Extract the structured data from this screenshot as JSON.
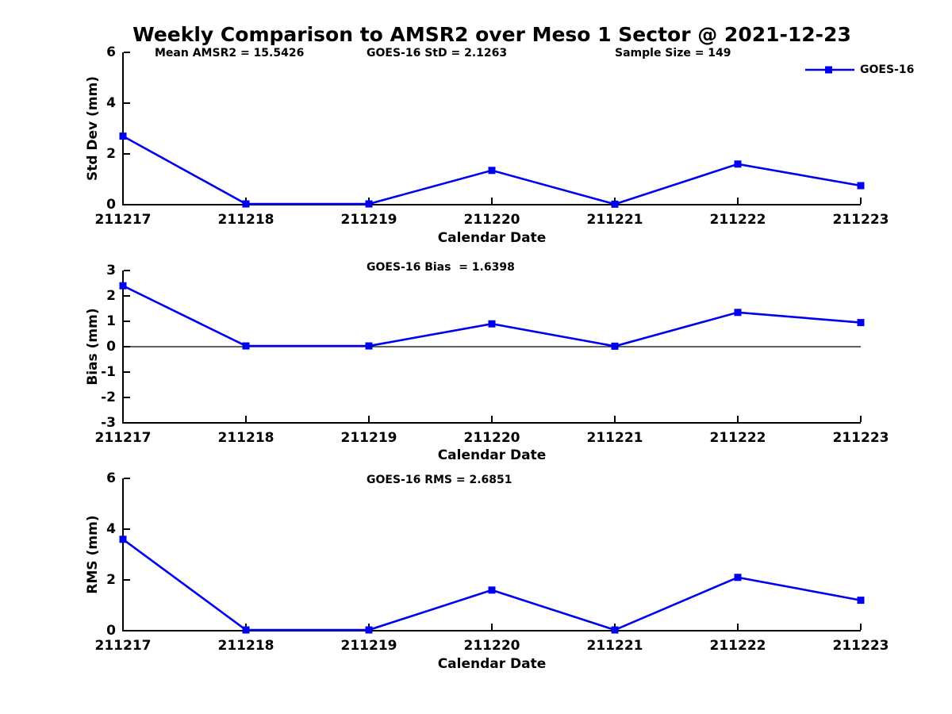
{
  "figure": {
    "title": "Weekly Comparison to AMSR2 over Meso 1 Sector @ 2021-12-23",
    "stats": [
      {
        "label": "Mean AMSR2 = 15.5426"
      },
      {
        "label": "GOES-16 StD = 2.1263"
      },
      {
        "label": "Sample Size = 149"
      }
    ],
    "legend": {
      "label": "GOES-16",
      "marker": "filled-square",
      "line_color": "#0000EE"
    }
  },
  "colors": {
    "series": "#0000EE",
    "axis": "#000000",
    "text": "#000000",
    "background": "#FFFFFF"
  },
  "chart_data": [
    {
      "type": "line",
      "id": "std-dev",
      "title": "",
      "ylabel": "Std Dev (mm)",
      "xlabel": "Calendar Date",
      "categories": [
        "211217",
        "211218",
        "211219",
        "211220",
        "211221",
        "211222",
        "211223"
      ],
      "series": [
        {
          "name": "GOES-16",
          "values": [
            2.7,
            0.03,
            0.03,
            1.35,
            0.02,
            1.6,
            0.75
          ]
        }
      ],
      "ylim": [
        0,
        6
      ],
      "yticks": [
        0,
        2,
        4,
        6
      ],
      "zero_line": false,
      "grid": false,
      "legend_position": "top-right"
    },
    {
      "type": "line",
      "id": "bias",
      "title": "GOES-16 Bias  = 1.6398",
      "ylabel": "Bias (mm)",
      "xlabel": "Calendar Date",
      "categories": [
        "211217",
        "211218",
        "211219",
        "211220",
        "211221",
        "211222",
        "211223"
      ],
      "series": [
        {
          "name": "GOES-16",
          "values": [
            2.4,
            0.03,
            0.03,
            0.9,
            0.02,
            1.35,
            0.95
          ]
        }
      ],
      "ylim": [
        -3,
        3
      ],
      "yticks": [
        -3,
        -2,
        -1,
        0,
        1,
        2,
        3
      ],
      "zero_line": true,
      "grid": false,
      "legend_position": "none"
    },
    {
      "type": "line",
      "id": "rms",
      "title": "GOES-16 RMS = 2.6851",
      "ylabel": "RMS (mm)",
      "xlabel": "Calendar Date",
      "categories": [
        "211217",
        "211218",
        "211219",
        "211220",
        "211221",
        "211222",
        "211223"
      ],
      "series": [
        {
          "name": "GOES-16",
          "values": [
            3.6,
            0.03,
            0.03,
            1.6,
            0.03,
            2.1,
            1.2
          ]
        }
      ],
      "ylim": [
        0,
        6
      ],
      "yticks": [
        0,
        2,
        4,
        6
      ],
      "zero_line": false,
      "grid": false,
      "legend_position": "none"
    }
  ]
}
